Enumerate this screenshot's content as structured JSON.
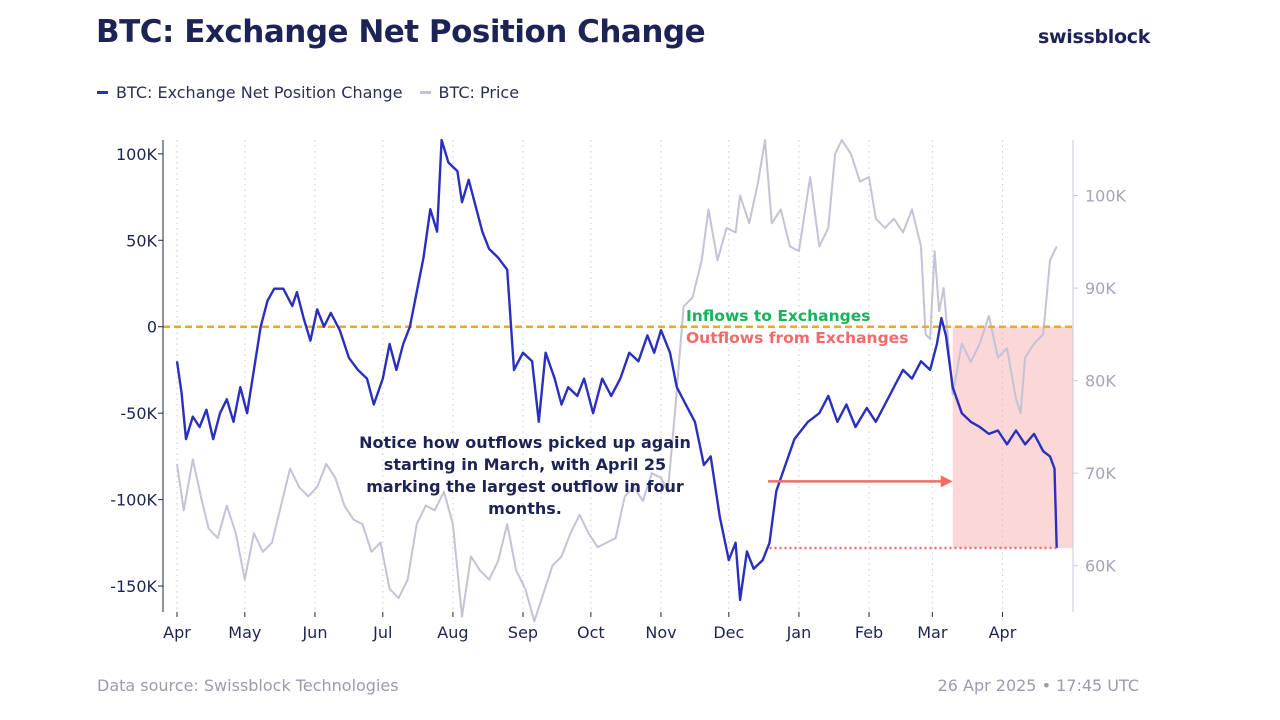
{
  "header": {
    "title": "BTC: Exchange Net Position Change",
    "brand": "swissblock"
  },
  "legend": {
    "items": [
      {
        "label": "BTC: Exchange Net Position Change",
        "color": "#2b2fbd"
      },
      {
        "label": "BTC: Price",
        "color": "#c3c3d6"
      }
    ]
  },
  "annotations": {
    "inflows": "Inflows to Exchanges",
    "outflows": "Outflows from Exchanges",
    "note": "Notice how outflows picked up again starting in March, with April 25 marking the largest outflow in four months."
  },
  "footer": {
    "source": "Data source: Swissblock Technologies",
    "timestamp": "26 Apr 2025 • 17:45 UTC"
  },
  "chart_data": {
    "type": "line",
    "x_axis": {
      "ticks": [
        "Apr",
        "May",
        "Jun",
        "Jul",
        "Aug",
        "Sep",
        "Oct",
        "Nov",
        "Dec",
        "Jan",
        "Feb",
        "Mar",
        "Apr"
      ],
      "range": [
        "2024-04-01",
        "2025-04-26"
      ]
    },
    "y_left": {
      "range": [
        -165000,
        108000
      ],
      "ticks": [
        100000,
        50000,
        0,
        -50000,
        -100000,
        -150000
      ],
      "tick_labels": [
        "100K",
        "50K",
        "0",
        "-50K",
        "-100K",
        "-150K"
      ]
    },
    "y_right": {
      "range": [
        55000,
        106000
      ],
      "ticks": [
        100000,
        90000,
        80000,
        70000,
        60000
      ],
      "tick_labels": [
        "100K",
        "90K",
        "80K",
        "70K",
        "60K"
      ]
    },
    "zero_line": {
      "value": 0,
      "color": "#f5a623"
    },
    "highlight_region": {
      "start": "2025-03-10",
      "end": "2025-04-26",
      "color": "#fbd3d3"
    },
    "level_line": {
      "value": -128000,
      "start": "2024-12-19",
      "end": "2025-04-25",
      "color": "#f26b6b"
    },
    "arrow": {
      "start": "2024-12-13",
      "end": "2025-03-10",
      "value": -90000,
      "color": "#f26b6b"
    },
    "series": [
      {
        "name": "BTC: Exchange Net Position Change",
        "axis": "left",
        "color": "#2b2fbd",
        "points": [
          [
            "2024-04-01",
            -20000
          ],
          [
            "2024-04-03",
            -38000
          ],
          [
            "2024-04-05",
            -65000
          ],
          [
            "2024-04-08",
            -52000
          ],
          [
            "2024-04-11",
            -58000
          ],
          [
            "2024-04-14",
            -48000
          ],
          [
            "2024-04-17",
            -65000
          ],
          [
            "2024-04-20",
            -50000
          ],
          [
            "2024-04-23",
            -42000
          ],
          [
            "2024-04-26",
            -55000
          ],
          [
            "2024-04-29",
            -35000
          ],
          [
            "2024-05-02",
            -50000
          ],
          [
            "2024-05-05",
            -25000
          ],
          [
            "2024-05-08",
            0
          ],
          [
            "2024-05-11",
            15000
          ],
          [
            "2024-05-14",
            22000
          ],
          [
            "2024-05-18",
            22000
          ],
          [
            "2024-05-22",
            12000
          ],
          [
            "2024-05-24",
            20000
          ],
          [
            "2024-05-27",
            5000
          ],
          [
            "2024-05-30",
            -8000
          ],
          [
            "2024-06-02",
            10000
          ],
          [
            "2024-06-05",
            0
          ],
          [
            "2024-06-08",
            8000
          ],
          [
            "2024-06-12",
            -2000
          ],
          [
            "2024-06-16",
            -18000
          ],
          [
            "2024-06-20",
            -25000
          ],
          [
            "2024-06-24",
            -30000
          ],
          [
            "2024-06-27",
            -45000
          ],
          [
            "2024-07-01",
            -30000
          ],
          [
            "2024-07-04",
            -10000
          ],
          [
            "2024-07-07",
            -25000
          ],
          [
            "2024-07-10",
            -10000
          ],
          [
            "2024-07-13",
            0
          ],
          [
            "2024-07-16",
            20000
          ],
          [
            "2024-07-19",
            40000
          ],
          [
            "2024-07-22",
            68000
          ],
          [
            "2024-07-25",
            55000
          ],
          [
            "2024-07-27",
            108000
          ],
          [
            "2024-07-30",
            95000
          ],
          [
            "2024-08-03",
            90000
          ],
          [
            "2024-08-05",
            72000
          ],
          [
            "2024-08-08",
            85000
          ],
          [
            "2024-08-11",
            70000
          ],
          [
            "2024-08-14",
            55000
          ],
          [
            "2024-08-17",
            45000
          ],
          [
            "2024-08-21",
            40000
          ],
          [
            "2024-08-25",
            33000
          ],
          [
            "2024-08-28",
            -25000
          ],
          [
            "2024-09-01",
            -15000
          ],
          [
            "2024-09-05",
            -20000
          ],
          [
            "2024-09-08",
            -55000
          ],
          [
            "2024-09-11",
            -15000
          ],
          [
            "2024-09-15",
            -30000
          ],
          [
            "2024-09-18",
            -45000
          ],
          [
            "2024-09-21",
            -35000
          ],
          [
            "2024-09-25",
            -40000
          ],
          [
            "2024-09-28",
            -30000
          ],
          [
            "2024-10-02",
            -50000
          ],
          [
            "2024-10-06",
            -30000
          ],
          [
            "2024-10-10",
            -40000
          ],
          [
            "2024-10-14",
            -30000
          ],
          [
            "2024-10-18",
            -15000
          ],
          [
            "2024-10-22",
            -20000
          ],
          [
            "2024-10-26",
            -5000
          ],
          [
            "2024-10-29",
            -15000
          ],
          [
            "2024-11-01",
            -2000
          ],
          [
            "2024-11-05",
            -15000
          ],
          [
            "2024-11-08",
            -35000
          ],
          [
            "2024-11-12",
            -45000
          ],
          [
            "2024-11-16",
            -55000
          ],
          [
            "2024-11-20",
            -80000
          ],
          [
            "2024-11-23",
            -75000
          ],
          [
            "2024-11-27",
            -110000
          ],
          [
            "2024-12-01",
            -135000
          ],
          [
            "2024-12-04",
            -125000
          ],
          [
            "2024-12-06",
            -158000
          ],
          [
            "2024-12-09",
            -130000
          ],
          [
            "2024-12-12",
            -140000
          ],
          [
            "2024-12-16",
            -135000
          ],
          [
            "2024-12-19",
            -125000
          ],
          [
            "2024-12-22",
            -95000
          ],
          [
            "2024-12-26",
            -80000
          ],
          [
            "2024-12-30",
            -65000
          ],
          [
            "2025-01-05",
            -55000
          ],
          [
            "2025-01-10",
            -50000
          ],
          [
            "2025-01-14",
            -40000
          ],
          [
            "2025-01-18",
            -55000
          ],
          [
            "2025-01-22",
            -45000
          ],
          [
            "2025-01-26",
            -58000
          ],
          [
            "2025-01-31",
            -47000
          ],
          [
            "2025-02-04",
            -55000
          ],
          [
            "2025-02-08",
            -45000
          ],
          [
            "2025-02-12",
            -35000
          ],
          [
            "2025-02-16",
            -25000
          ],
          [
            "2025-02-20",
            -30000
          ],
          [
            "2025-02-24",
            -20000
          ],
          [
            "2025-02-28",
            -25000
          ],
          [
            "2025-03-03",
            -10000
          ],
          [
            "2025-03-05",
            5000
          ],
          [
            "2025-03-07",
            -5000
          ],
          [
            "2025-03-10",
            -35000
          ],
          [
            "2025-03-14",
            -50000
          ],
          [
            "2025-03-18",
            -55000
          ],
          [
            "2025-03-22",
            -58000
          ],
          [
            "2025-03-26",
            -62000
          ],
          [
            "2025-03-30",
            -60000
          ],
          [
            "2025-04-03",
            -68000
          ],
          [
            "2025-04-07",
            -60000
          ],
          [
            "2025-04-11",
            -68000
          ],
          [
            "2025-04-15",
            -62000
          ],
          [
            "2025-04-19",
            -72000
          ],
          [
            "2025-04-22",
            -75000
          ],
          [
            "2025-04-24",
            -82000
          ],
          [
            "2025-04-25",
            -128000
          ]
        ]
      },
      {
        "name": "BTC: Price",
        "axis": "right",
        "color": "#c3c3d6",
        "points": [
          [
            "2024-04-01",
            71000
          ],
          [
            "2024-04-04",
            66000
          ],
          [
            "2024-04-08",
            71500
          ],
          [
            "2024-04-12",
            67000
          ],
          [
            "2024-04-15",
            64000
          ],
          [
            "2024-04-19",
            63000
          ],
          [
            "2024-04-23",
            66500
          ],
          [
            "2024-04-27",
            63500
          ],
          [
            "2024-05-01",
            58500
          ],
          [
            "2024-05-05",
            63500
          ],
          [
            "2024-05-09",
            61500
          ],
          [
            "2024-05-13",
            62500
          ],
          [
            "2024-05-17",
            66500
          ],
          [
            "2024-05-21",
            70500
          ],
          [
            "2024-05-25",
            68500
          ],
          [
            "2024-05-29",
            67500
          ],
          [
            "2024-06-02",
            68500
          ],
          [
            "2024-06-06",
            71000
          ],
          [
            "2024-06-10",
            69500
          ],
          [
            "2024-06-14",
            66500
          ],
          [
            "2024-06-18",
            65000
          ],
          [
            "2024-06-22",
            64500
          ],
          [
            "2024-06-26",
            61500
          ],
          [
            "2024-06-30",
            62500
          ],
          [
            "2024-07-04",
            57500
          ],
          [
            "2024-07-08",
            56500
          ],
          [
            "2024-07-12",
            58500
          ],
          [
            "2024-07-16",
            64500
          ],
          [
            "2024-07-20",
            66500
          ],
          [
            "2024-07-24",
            66000
          ],
          [
            "2024-07-28",
            68000
          ],
          [
            "2024-08-01",
            64500
          ],
          [
            "2024-08-05",
            54500
          ],
          [
            "2024-08-09",
            61000
          ],
          [
            "2024-08-13",
            59500
          ],
          [
            "2024-08-17",
            58500
          ],
          [
            "2024-08-21",
            60500
          ],
          [
            "2024-08-25",
            64500
          ],
          [
            "2024-08-29",
            59500
          ],
          [
            "2024-09-02",
            57500
          ],
          [
            "2024-09-06",
            54000
          ],
          [
            "2024-09-10",
            57000
          ],
          [
            "2024-09-14",
            60000
          ],
          [
            "2024-09-18",
            61000
          ],
          [
            "2024-09-22",
            63500
          ],
          [
            "2024-09-26",
            65500
          ],
          [
            "2024-09-30",
            63500
          ],
          [
            "2024-10-04",
            62000
          ],
          [
            "2024-10-08",
            62500
          ],
          [
            "2024-10-12",
            63000
          ],
          [
            "2024-10-16",
            67500
          ],
          [
            "2024-10-20",
            68500
          ],
          [
            "2024-10-24",
            67000
          ],
          [
            "2024-10-28",
            70000
          ],
          [
            "2024-11-01",
            69500
          ],
          [
            "2024-11-04",
            68000
          ],
          [
            "2024-11-07",
            76000
          ],
          [
            "2024-11-11",
            88000
          ],
          [
            "2024-11-15",
            89000
          ],
          [
            "2024-11-19",
            93000
          ],
          [
            "2024-11-22",
            98500
          ],
          [
            "2024-11-26",
            93000
          ],
          [
            "2024-11-30",
            96500
          ],
          [
            "2024-12-04",
            96000
          ],
          [
            "2024-12-06",
            100000
          ],
          [
            "2024-12-10",
            97000
          ],
          [
            "2024-12-14",
            101500
          ],
          [
            "2024-12-17",
            106000
          ],
          [
            "2024-12-20",
            97000
          ],
          [
            "2024-12-24",
            98500
          ],
          [
            "2024-12-28",
            94500
          ],
          [
            "2025-01-01",
            94000
          ],
          [
            "2025-01-06",
            102000
          ],
          [
            "2025-01-10",
            94500
          ],
          [
            "2025-01-14",
            96500
          ],
          [
            "2025-01-17",
            104500
          ],
          [
            "2025-01-20",
            106000
          ],
          [
            "2025-01-24",
            104500
          ],
          [
            "2025-01-28",
            101500
          ],
          [
            "2025-02-01",
            102000
          ],
          [
            "2025-02-04",
            97500
          ],
          [
            "2025-02-08",
            96500
          ],
          [
            "2025-02-12",
            97500
          ],
          [
            "2025-02-16",
            96000
          ],
          [
            "2025-02-20",
            98500
          ],
          [
            "2025-02-24",
            94500
          ],
          [
            "2025-02-26",
            85000
          ],
          [
            "2025-02-28",
            84500
          ],
          [
            "2025-03-02",
            94000
          ],
          [
            "2025-03-04",
            87500
          ],
          [
            "2025-03-06",
            90000
          ],
          [
            "2025-03-10",
            78500
          ],
          [
            "2025-03-14",
            84000
          ],
          [
            "2025-03-18",
            82000
          ],
          [
            "2025-03-22",
            84000
          ],
          [
            "2025-03-26",
            87000
          ],
          [
            "2025-03-30",
            82500
          ],
          [
            "2025-04-03",
            83500
          ],
          [
            "2025-04-07",
            78000
          ],
          [
            "2025-04-09",
            76500
          ],
          [
            "2025-04-11",
            82500
          ],
          [
            "2025-04-15",
            84000
          ],
          [
            "2025-04-19",
            85000
          ],
          [
            "2025-04-22",
            93000
          ],
          [
            "2025-04-25",
            94500
          ]
        ]
      }
    ]
  }
}
